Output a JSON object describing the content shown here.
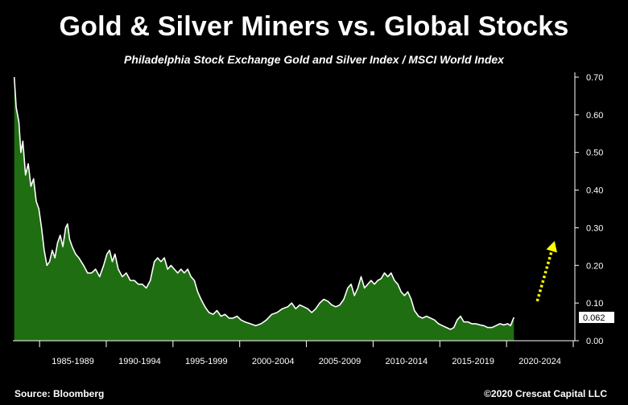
{
  "chart_data": {
    "type": "area",
    "title": "Gold & Silver Miners vs. Global Stocks",
    "subtitle": "Philadelphia Stock Exchange Gold and Silver Index / MSCI World Index",
    "series_name": "Philadelphia Stock Exchange Gold and Silver Index / MSCI World Index",
    "x_categories": [
      "1985-1989",
      "1990-1994",
      "1995-1999",
      "2000-2004",
      "2005-2009",
      "2010-2014",
      "2015-2019",
      "2020-2024"
    ],
    "x_range": [
      1983.0,
      2025.0
    ],
    "ylim": [
      0,
      0.7
    ],
    "yticks": [
      0.0,
      0.1,
      0.2,
      0.3,
      0.4,
      0.5,
      0.6,
      0.7
    ],
    "ytick_labels": [
      "0.00",
      "0.10",
      "0.20",
      "0.30",
      "0.40",
      "0.50",
      "0.60",
      "0.70"
    ],
    "current_value": 0.062,
    "current_value_label": "0.062",
    "points": [
      [
        1983.1,
        0.7
      ],
      [
        1983.25,
        0.62
      ],
      [
        1983.45,
        0.58
      ],
      [
        1983.6,
        0.5
      ],
      [
        1983.75,
        0.53
      ],
      [
        1983.95,
        0.44
      ],
      [
        1984.15,
        0.47
      ],
      [
        1984.35,
        0.41
      ],
      [
        1984.55,
        0.43
      ],
      [
        1984.75,
        0.37
      ],
      [
        1984.95,
        0.35
      ],
      [
        1985.15,
        0.3
      ],
      [
        1985.35,
        0.24
      ],
      [
        1985.55,
        0.2
      ],
      [
        1985.75,
        0.21
      ],
      [
        1985.95,
        0.24
      ],
      [
        1986.15,
        0.22
      ],
      [
        1986.35,
        0.26
      ],
      [
        1986.55,
        0.28
      ],
      [
        1986.75,
        0.25
      ],
      [
        1986.95,
        0.3
      ],
      [
        1987.1,
        0.31
      ],
      [
        1987.25,
        0.27
      ],
      [
        1987.45,
        0.25
      ],
      [
        1987.7,
        0.23
      ],
      [
        1987.95,
        0.22
      ],
      [
        1988.3,
        0.2
      ],
      [
        1988.6,
        0.18
      ],
      [
        1988.9,
        0.18
      ],
      [
        1989.2,
        0.19
      ],
      [
        1989.5,
        0.17
      ],
      [
        1989.8,
        0.2
      ],
      [
        1990.05,
        0.23
      ],
      [
        1990.25,
        0.24
      ],
      [
        1990.45,
        0.21
      ],
      [
        1990.65,
        0.23
      ],
      [
        1990.9,
        0.19
      ],
      [
        1991.2,
        0.17
      ],
      [
        1991.5,
        0.18
      ],
      [
        1991.8,
        0.16
      ],
      [
        1992.1,
        0.16
      ],
      [
        1992.4,
        0.15
      ],
      [
        1992.7,
        0.15
      ],
      [
        1993.0,
        0.14
      ],
      [
        1993.3,
        0.16
      ],
      [
        1993.6,
        0.21
      ],
      [
        1993.85,
        0.22
      ],
      [
        1994.1,
        0.21
      ],
      [
        1994.35,
        0.22
      ],
      [
        1994.6,
        0.19
      ],
      [
        1994.85,
        0.2
      ],
      [
        1995.1,
        0.19
      ],
      [
        1995.35,
        0.18
      ],
      [
        1995.6,
        0.19
      ],
      [
        1995.85,
        0.18
      ],
      [
        1996.1,
        0.19
      ],
      [
        1996.35,
        0.17
      ],
      [
        1996.6,
        0.16
      ],
      [
        1996.85,
        0.13
      ],
      [
        1997.1,
        0.11
      ],
      [
        1997.4,
        0.09
      ],
      [
        1997.7,
        0.075
      ],
      [
        1998.0,
        0.07
      ],
      [
        1998.3,
        0.08
      ],
      [
        1998.6,
        0.065
      ],
      [
        1998.9,
        0.07
      ],
      [
        1999.2,
        0.06
      ],
      [
        1999.5,
        0.06
      ],
      [
        1999.8,
        0.065
      ],
      [
        2000.1,
        0.055
      ],
      [
        2000.4,
        0.05
      ],
      [
        2000.8,
        0.045
      ],
      [
        2001.2,
        0.04
      ],
      [
        2001.6,
        0.045
      ],
      [
        2002.0,
        0.055
      ],
      [
        2002.4,
        0.07
      ],
      [
        2002.8,
        0.075
      ],
      [
        2003.2,
        0.085
      ],
      [
        2003.6,
        0.09
      ],
      [
        2003.9,
        0.1
      ],
      [
        2004.2,
        0.085
      ],
      [
        2004.5,
        0.095
      ],
      [
        2004.8,
        0.09
      ],
      [
        2005.1,
        0.085
      ],
      [
        2005.4,
        0.075
      ],
      [
        2005.7,
        0.085
      ],
      [
        2006.0,
        0.1
      ],
      [
        2006.3,
        0.11
      ],
      [
        2006.6,
        0.105
      ],
      [
        2006.9,
        0.095
      ],
      [
        2007.2,
        0.09
      ],
      [
        2007.5,
        0.095
      ],
      [
        2007.8,
        0.11
      ],
      [
        2008.1,
        0.14
      ],
      [
        2008.35,
        0.15
      ],
      [
        2008.6,
        0.12
      ],
      [
        2008.85,
        0.14
      ],
      [
        2009.1,
        0.17
      ],
      [
        2009.35,
        0.14
      ],
      [
        2009.6,
        0.15
      ],
      [
        2009.85,
        0.16
      ],
      [
        2010.1,
        0.15
      ],
      [
        2010.35,
        0.16
      ],
      [
        2010.6,
        0.165
      ],
      [
        2010.85,
        0.18
      ],
      [
        2011.1,
        0.17
      ],
      [
        2011.35,
        0.18
      ],
      [
        2011.6,
        0.16
      ],
      [
        2011.85,
        0.15
      ],
      [
        2012.1,
        0.13
      ],
      [
        2012.35,
        0.12
      ],
      [
        2012.6,
        0.13
      ],
      [
        2012.85,
        0.11
      ],
      [
        2013.1,
        0.08
      ],
      [
        2013.4,
        0.065
      ],
      [
        2013.7,
        0.06
      ],
      [
        2014.0,
        0.065
      ],
      [
        2014.3,
        0.06
      ],
      [
        2014.6,
        0.055
      ],
      [
        2014.9,
        0.045
      ],
      [
        2015.2,
        0.04
      ],
      [
        2015.5,
        0.035
      ],
      [
        2015.8,
        0.03
      ],
      [
        2016.05,
        0.035
      ],
      [
        2016.3,
        0.055
      ],
      [
        2016.55,
        0.065
      ],
      [
        2016.8,
        0.05
      ],
      [
        2017.1,
        0.05
      ],
      [
        2017.4,
        0.045
      ],
      [
        2017.7,
        0.045
      ],
      [
        2018.0,
        0.042
      ],
      [
        2018.3,
        0.04
      ],
      [
        2018.6,
        0.035
      ],
      [
        2018.9,
        0.035
      ],
      [
        2019.2,
        0.04
      ],
      [
        2019.5,
        0.045
      ],
      [
        2019.8,
        0.042
      ],
      [
        2020.1,
        0.045
      ],
      [
        2020.3,
        0.04
      ],
      [
        2020.55,
        0.062
      ]
    ],
    "annotation": {
      "type": "dotted-arrow",
      "color": "#ffff00",
      "from": [
        2022.3,
        0.105
      ],
      "to": [
        2023.6,
        0.265
      ]
    },
    "colors": {
      "fill": "#1f6e12",
      "line": "#ffffff",
      "background": "#000000",
      "annotation": "#ffff00"
    },
    "grid": false
  },
  "footer": {
    "source": "Source: Bloomberg",
    "copyright": "©2020 Crescat Capital LLC"
  }
}
